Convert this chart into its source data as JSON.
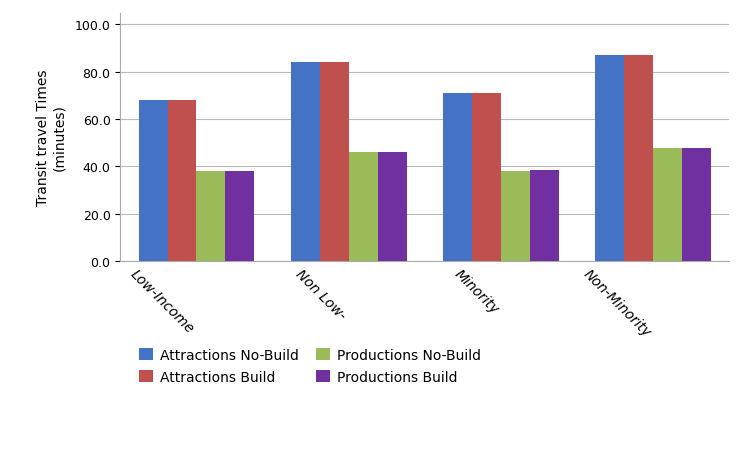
{
  "categories": [
    "Low-Income",
    "Non Low-",
    "Minority",
    "Non-Minority"
  ],
  "series": {
    "Attractions No-Build": [
      68.0,
      84.0,
      71.0,
      87.0
    ],
    "Attractions Build": [
      68.0,
      84.0,
      71.0,
      87.0
    ],
    "Productions No-Build": [
      38.0,
      46.0,
      38.0,
      48.0
    ],
    "Productions Build": [
      38.0,
      46.0,
      38.5,
      48.0
    ]
  },
  "colors": {
    "Attractions No-Build": "#4472C4",
    "Attractions Build": "#C0504D",
    "Productions No-Build": "#9BBB59",
    "Productions Build": "#7030A0"
  },
  "ylabel": "Transit travel Times\n(minutes)",
  "ylim": [
    0,
    105
  ],
  "yticks": [
    0.0,
    20.0,
    40.0,
    60.0,
    80.0,
    100.0
  ],
  "bar_width": 0.19,
  "legend_ncol": 2,
  "legend_labels_row1": [
    "Attractions No-Build",
    "Attractions Build"
  ],
  "legend_labels_row2": [
    "Productions No-Build",
    "Productions Build"
  ],
  "xlabel_rotation": -45,
  "background_color": "#ffffff",
  "grid_color": "#bbbbbb",
  "spine_color": "#aaaaaa",
  "figsize": [
    7.52,
    4.52
  ],
  "dpi": 100
}
